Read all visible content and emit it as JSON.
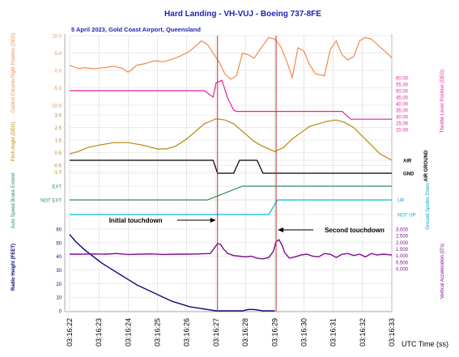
{
  "chart_data": {
    "type": "line",
    "title": "Hard Landing - VH-VUJ - Boeing 737-8FE",
    "subtitle": "5 April 2023, Gold Coast Airport, Queensland",
    "xlabel": "UTC Time (ss)",
    "x_ticks": [
      "03:16:22",
      "03:16:23",
      "03:16:24",
      "03:16:25",
      "03:16:26",
      "03:16:27",
      "03:16:28",
      "03:16:29",
      "03:16:30",
      "03:16:31",
      "03:16:32",
      "03:16:33"
    ],
    "x_range": [
      22,
      33
    ],
    "events": [
      {
        "time": 27.05,
        "label": "Initial touchdown"
      },
      {
        "time": 29.05,
        "label": "Second touchdown"
      }
    ],
    "colors": {
      "title": "#1f1fb4",
      "control_column": "#f08a4b",
      "throttle": "#e0219a",
      "pitch": "#b8860b",
      "air_ground": "#000000",
      "speedbrake_extend": "#2e8b57",
      "spoiler_down": "#00bcd4",
      "radio_height": "#0a0a7a",
      "vertical_accel": "#7a0d8a",
      "event_line": "#d32f2f",
      "grid": "#cfcfcf"
    },
    "panels": {
      "control_column": {
        "ylabel": "Control Column Right Position (DEG)",
        "ticks": [
          "10.0",
          "5.0",
          "0.0",
          "-5.0",
          "-10.0"
        ],
        "ylim": [
          -10,
          10
        ],
        "x": [
          22,
          22.3,
          22.5,
          22.8,
          23.2,
          23.5,
          23.8,
          24.0,
          24.3,
          24.6,
          24.9,
          25.2,
          25.5,
          25.8,
          26.1,
          26.3,
          26.5,
          26.7,
          26.9,
          27.1,
          27.3,
          27.5,
          27.7,
          27.9,
          28.1,
          28.3,
          28.5,
          28.8,
          29.0,
          29.2,
          29.4,
          29.6,
          29.8,
          30.0,
          30.2,
          30.4,
          30.7,
          30.9,
          31.1,
          31.3,
          31.5,
          31.7,
          31.9,
          32.1,
          32.3,
          32.5,
          32.7,
          32.9,
          33.0
        ],
        "y": [
          1.5,
          0.5,
          0.8,
          0.5,
          0.8,
          1.2,
          0.6,
          -0.5,
          1.5,
          2.0,
          2.8,
          2.5,
          3.2,
          4.2,
          5.5,
          7.0,
          8.5,
          7.5,
          5.0,
          2.5,
          -1.0,
          -2.5,
          -1.5,
          5.0,
          4.5,
          3.5,
          6.0,
          9.5,
          9.0,
          7.0,
          3.0,
          -2.0,
          6.5,
          5.5,
          1.5,
          -1.0,
          -1.5,
          6.0,
          8.5,
          4.5,
          3.0,
          4.0,
          8.5,
          9.5,
          9.0,
          7.5,
          6.0,
          4.5,
          3.5
        ]
      },
      "throttle": {
        "ylabel": "Throttle Lever Position (DEG)",
        "ticks": [
          "60.00",
          "55.00",
          "50.00",
          "45.00",
          "40.00",
          "35.00",
          "30.00",
          "25.00",
          "20.00"
        ],
        "ylim": [
          20,
          60
        ],
        "x": [
          22,
          26.3,
          26.6,
          26.9,
          27.0,
          27.2,
          27.4,
          27.6,
          27.7,
          31.3,
          31.6,
          33.0
        ],
        "y": [
          50,
          50,
          50,
          45,
          56,
          58,
          44,
          35,
          34,
          34,
          28,
          28
        ]
      },
      "pitch": {
        "ylabel": "Pitch Angle (DEG)",
        "ticks": [
          "3.5",
          "2.5",
          "1.5",
          "0.5",
          "-0.5",
          "-1.0"
        ],
        "ylim": [
          -1.0,
          3.5
        ],
        "x": [
          22,
          22.3,
          22.6,
          23.0,
          23.5,
          24.0,
          24.5,
          25.0,
          25.3,
          25.6,
          26.0,
          26.3,
          26.6,
          27.0,
          27.3,
          27.6,
          28.0,
          28.3,
          28.6,
          29.0,
          29.3,
          29.6,
          29.9,
          30.2,
          30.5,
          30.8,
          31.1,
          31.4,
          31.7,
          32.0,
          32.3,
          32.6,
          33.0
        ],
        "y": [
          0.4,
          0.6,
          0.9,
          1.1,
          1.3,
          1.3,
          1.1,
          0.8,
          0.8,
          1.0,
          1.6,
          2.2,
          2.8,
          3.2,
          3.1,
          2.8,
          2.0,
          1.4,
          1.0,
          0.6,
          0.9,
          1.6,
          2.1,
          2.6,
          2.8,
          3.0,
          3.1,
          2.9,
          2.5,
          1.8,
          1.1,
          0.4,
          -0.1
        ]
      },
      "air_ground": {
        "ylabel": "AIR GROUND",
        "labels": [
          "AIR",
          "GND"
        ],
        "x": [
          22,
          26.9,
          27.05,
          27.5,
          27.6,
          27.8,
          28.2,
          28.4,
          28.6,
          33.0
        ],
        "state": [
          "AIR",
          "AIR",
          "GND",
          "GND",
          "GND",
          "AIR",
          "AIR",
          "AIR",
          "GND",
          "GND"
        ]
      },
      "speedbrake": {
        "ylabel": "Auto Speed Brake Extend",
        "labels": [
          "EXT",
          "NOT EXT"
        ],
        "x": [
          22,
          26.7,
          27.9,
          33.0
        ],
        "state": [
          "NOT EXT",
          "NOT EXT",
          "EXT",
          "EXT"
        ]
      },
      "spoiler": {
        "ylabel": "Ground Spoiler Down",
        "labels": [
          "UP",
          "NOT UP"
        ],
        "x": [
          22,
          28.8,
          29.1,
          33.0
        ],
        "state": [
          "NOT UP",
          "NOT UP",
          "UP",
          "UP"
        ]
      },
      "radio_height": {
        "ylabel": "Radio Height (FEET)",
        "ticks": [
          "60",
          "50",
          "40",
          "30",
          "20",
          "10",
          "0"
        ],
        "ylim": [
          0,
          60
        ],
        "x": [
          22,
          22.2,
          22.5,
          22.8,
          23.1,
          23.4,
          23.7,
          24.0,
          24.3,
          24.6,
          24.9,
          25.2,
          25.5,
          25.8,
          26.1,
          26.4,
          26.7,
          27.0,
          27.1,
          27.6,
          27.9,
          28.1,
          28.3,
          28.6,
          28.8,
          29.0
        ],
        "y": [
          56,
          51,
          45,
          40,
          35,
          31,
          27,
          23,
          19,
          16,
          13,
          10,
          7,
          5,
          3,
          2,
          1,
          0,
          0,
          0,
          0,
          1,
          1,
          0,
          0,
          0
        ]
      },
      "vertical_accel": {
        "ylabel": "Vertical Acceleration (G's)",
        "ticks": [
          "3.000",
          "2.500",
          "2.000",
          "1.500",
          "1.000",
          "0.500",
          "0.000"
        ],
        "ylim": [
          0,
          3
        ],
        "x": [
          22,
          22.4,
          22.8,
          23.2,
          23.6,
          24.0,
          24.4,
          24.8,
          25.2,
          25.6,
          26.0,
          26.4,
          26.8,
          26.95,
          27.05,
          27.15,
          27.25,
          27.4,
          27.6,
          27.8,
          28.0,
          28.2,
          28.4,
          28.6,
          28.8,
          28.95,
          29.05,
          29.15,
          29.25,
          29.35,
          29.5,
          29.7,
          29.9,
          30.1,
          30.3,
          30.5,
          30.7,
          30.9,
          31.1,
          31.3,
          31.5,
          31.7,
          31.9,
          32.1,
          32.3,
          32.5,
          32.7,
          33.0
        ],
        "y": [
          1.1,
          1.1,
          1.12,
          1.1,
          1.15,
          1.08,
          1.1,
          1.12,
          1.08,
          1.1,
          1.1,
          1.12,
          1.15,
          1.6,
          1.9,
          1.85,
          1.5,
          1.15,
          1.0,
          0.95,
          0.9,
          0.95,
          0.8,
          0.75,
          0.85,
          1.3,
          2.05,
          2.2,
          1.8,
          1.2,
          0.8,
          0.9,
          1.05,
          1.1,
          0.95,
          0.9,
          1.15,
          1.1,
          0.85,
          1.1,
          1.15,
          1.0,
          1.1,
          0.9,
          1.15,
          1.05,
          1.1,
          1.05
        ]
      }
    }
  }
}
